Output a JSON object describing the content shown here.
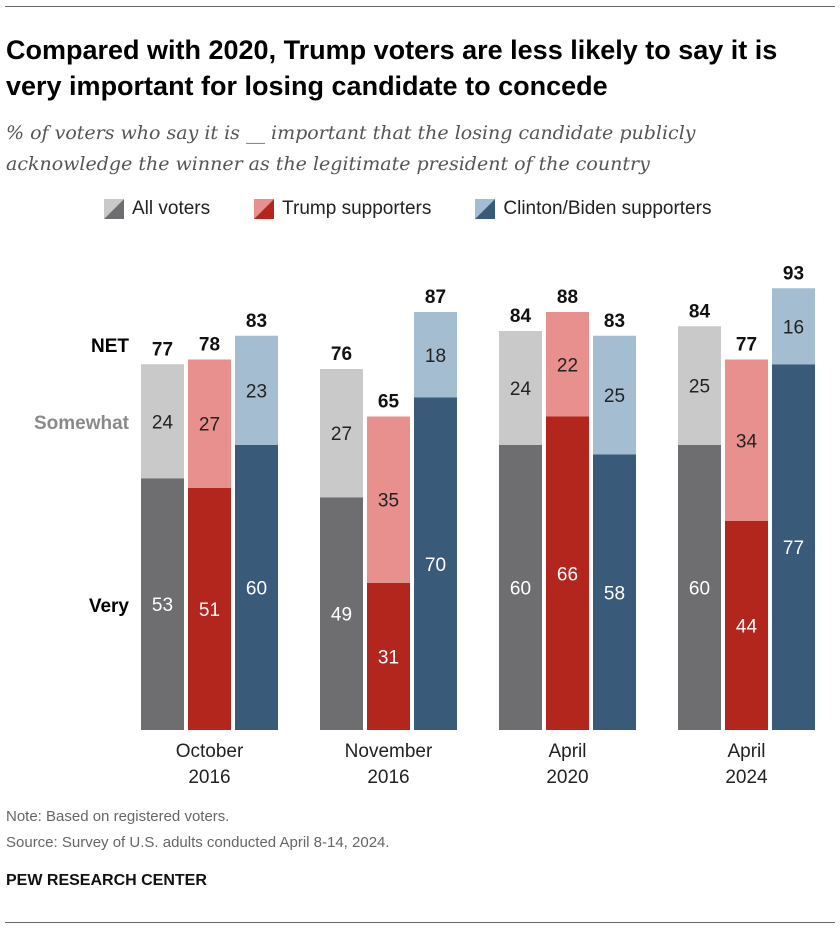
{
  "title": "Compared with 2020, Trump voters are less likely to say it is very important for losing candidate to concede",
  "subtitle": "% of voters who say it is __ important that the losing candidate publicly acknowledge the winner as the legitimate president of the country",
  "note": "Note: Based on registered voters.",
  "source": "Source: Survey of U.S. adults conducted April 8-14, 2024.",
  "brand": "PEW RESEARCH CENTER",
  "chart_data": {
    "type": "bar",
    "stacked": true,
    "row_labels": {
      "net": "NET",
      "somewhat": "Somewhat",
      "very": "Very"
    },
    "categories": [
      [
        "October",
        "2016"
      ],
      [
        "November",
        "2016"
      ],
      [
        "April",
        "2020"
      ],
      [
        "April",
        "2024"
      ]
    ],
    "series": [
      {
        "name": "All voters",
        "colors": {
          "very": "#6e6e70",
          "somewhat": "#c9c9c9"
        },
        "very": [
          53,
          49,
          60,
          60
        ],
        "somewhat": [
          24,
          27,
          24,
          25
        ],
        "net": [
          77,
          76,
          84,
          84
        ]
      },
      {
        "name": "Trump supporters",
        "colors": {
          "very": "#b3261e",
          "somewhat": "#e8908d"
        },
        "very": [
          51,
          31,
          66,
          44
        ],
        "somewhat": [
          27,
          35,
          22,
          34
        ],
        "net": [
          78,
          65,
          88,
          77
        ]
      },
      {
        "name": "Clinton/Biden supporters",
        "colors": {
          "very": "#3a5a7a",
          "somewhat": "#a4bdd0"
        },
        "very": [
          60,
          70,
          58,
          77
        ],
        "somewhat": [
          23,
          18,
          25,
          16
        ],
        "net": [
          83,
          87,
          83,
          93
        ]
      }
    ],
    "ylim": [
      0,
      100
    ]
  }
}
